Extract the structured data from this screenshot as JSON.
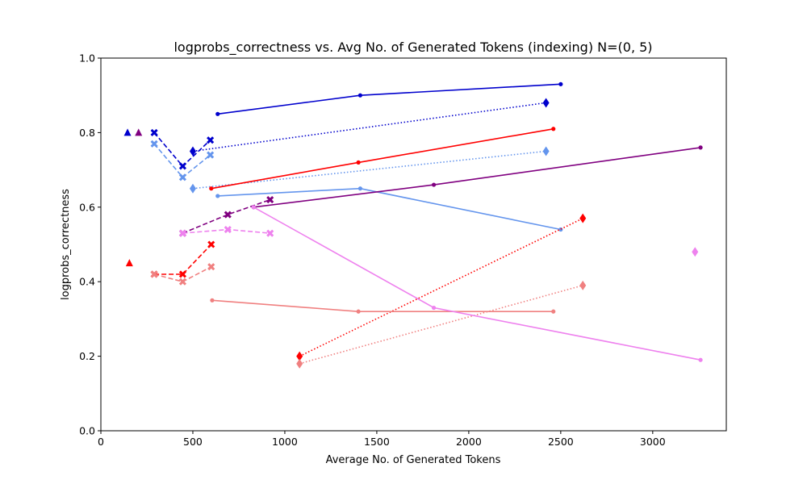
{
  "chart_data": {
    "type": "line",
    "title": "logprobs_correctness vs. Avg No. of Generated Tokens (indexing) N=(0, 5)",
    "xlabel": "Average No. of Generated Tokens",
    "ylabel": "logprobs_correctness",
    "xlim": [
      0,
      3400
    ],
    "ylim": [
      0.0,
      1.0
    ],
    "xticks": [
      0,
      500,
      1000,
      1500,
      2000,
      2500,
      3000
    ],
    "yticks": [
      0.0,
      0.2,
      0.4,
      0.6,
      0.8,
      1.0
    ],
    "grid": false,
    "legend": "none",
    "series": [
      {
        "color": "#0000cd",
        "dash": "solid",
        "marker": "dot",
        "points": [
          [
            635,
            0.85
          ],
          [
            1410,
            0.9
          ],
          [
            2500,
            0.93
          ]
        ]
      },
      {
        "color": "#0000cd",
        "dash": "dotted",
        "marker": "dot",
        "points": [
          [
            500,
            0.75
          ],
          [
            2420,
            0.88
          ]
        ]
      },
      {
        "color": "#0000cd",
        "dash": "none",
        "marker": "diamond",
        "points": [
          [
            500,
            0.75
          ],
          [
            2420,
            0.88
          ]
        ]
      },
      {
        "color": "#0000cd",
        "dash": "dashed",
        "marker": "x",
        "points": [
          [
            290,
            0.8
          ],
          [
            445,
            0.71
          ],
          [
            595,
            0.78
          ]
        ]
      },
      {
        "color": "#0000cd",
        "dash": "none",
        "marker": "triangle",
        "points": [
          [
            145,
            0.8
          ]
        ]
      },
      {
        "color": "#6495ed",
        "dash": "solid",
        "marker": "dot",
        "points": [
          [
            635,
            0.63
          ],
          [
            1410,
            0.65
          ],
          [
            2500,
            0.54
          ]
        ]
      },
      {
        "color": "#6495ed",
        "dash": "dotted",
        "marker": "dot",
        "points": [
          [
            500,
            0.65
          ],
          [
            2420,
            0.75
          ]
        ]
      },
      {
        "color": "#6495ed",
        "dash": "none",
        "marker": "diamond",
        "points": [
          [
            500,
            0.65
          ],
          [
            2420,
            0.75
          ]
        ]
      },
      {
        "color": "#6495ed",
        "dash": "dashed",
        "marker": "x",
        "points": [
          [
            290,
            0.77
          ],
          [
            445,
            0.68
          ],
          [
            595,
            0.74
          ]
        ]
      },
      {
        "color": "#ff0000",
        "dash": "solid",
        "marker": "dot",
        "points": [
          [
            600,
            0.65
          ],
          [
            1400,
            0.72
          ],
          [
            2460,
            0.81
          ]
        ]
      },
      {
        "color": "#ff0000",
        "dash": "dotted",
        "marker": "dot",
        "points": [
          [
            1080,
            0.2
          ],
          [
            2620,
            0.57
          ]
        ]
      },
      {
        "color": "#ff0000",
        "dash": "none",
        "marker": "diamond",
        "points": [
          [
            1080,
            0.2
          ],
          [
            2620,
            0.57
          ]
        ]
      },
      {
        "color": "#ff0000",
        "dash": "dashed",
        "marker": "x",
        "points": [
          [
            290,
            0.42
          ],
          [
            445,
            0.42
          ],
          [
            600,
            0.5
          ]
        ]
      },
      {
        "color": "#ff0000",
        "dash": "none",
        "marker": "triangle",
        "points": [
          [
            155,
            0.45
          ]
        ]
      },
      {
        "color": "#f08080",
        "dash": "solid",
        "marker": "dot",
        "points": [
          [
            605,
            0.35
          ],
          [
            1400,
            0.32
          ],
          [
            2460,
            0.32
          ]
        ]
      },
      {
        "color": "#f08080",
        "dash": "dotted",
        "marker": "dot",
        "points": [
          [
            1080,
            0.18
          ],
          [
            2620,
            0.39
          ]
        ]
      },
      {
        "color": "#f08080",
        "dash": "none",
        "marker": "diamond",
        "points": [
          [
            1080,
            0.18
          ],
          [
            2620,
            0.39
          ]
        ]
      },
      {
        "color": "#f08080",
        "dash": "dashed",
        "marker": "x",
        "points": [
          [
            290,
            0.42
          ],
          [
            445,
            0.4
          ],
          [
            600,
            0.44
          ]
        ]
      },
      {
        "color": "#800080",
        "dash": "solid",
        "marker": "dot",
        "points": [
          [
            830,
            0.6
          ],
          [
            1810,
            0.66
          ],
          [
            3260,
            0.76
          ]
        ]
      },
      {
        "color": "#800080",
        "dash": "dashed",
        "marker": "x",
        "points": [
          [
            445,
            0.53
          ],
          [
            690,
            0.58
          ],
          [
            920,
            0.62
          ]
        ]
      },
      {
        "color": "#800080",
        "dash": "none",
        "marker": "triangle",
        "points": [
          [
            205,
            0.8
          ]
        ]
      },
      {
        "color": "#ee82ee",
        "dash": "solid",
        "marker": "dot",
        "points": [
          [
            830,
            0.6
          ],
          [
            1810,
            0.33
          ],
          [
            3260,
            0.19
          ]
        ]
      },
      {
        "color": "#ee82ee",
        "dash": "dashed",
        "marker": "x",
        "points": [
          [
            445,
            0.53
          ],
          [
            690,
            0.54
          ],
          [
            920,
            0.53
          ]
        ]
      },
      {
        "color": "#ee82ee",
        "dash": "none",
        "marker": "diamond",
        "points": [
          [
            3230,
            0.48
          ]
        ]
      }
    ]
  }
}
